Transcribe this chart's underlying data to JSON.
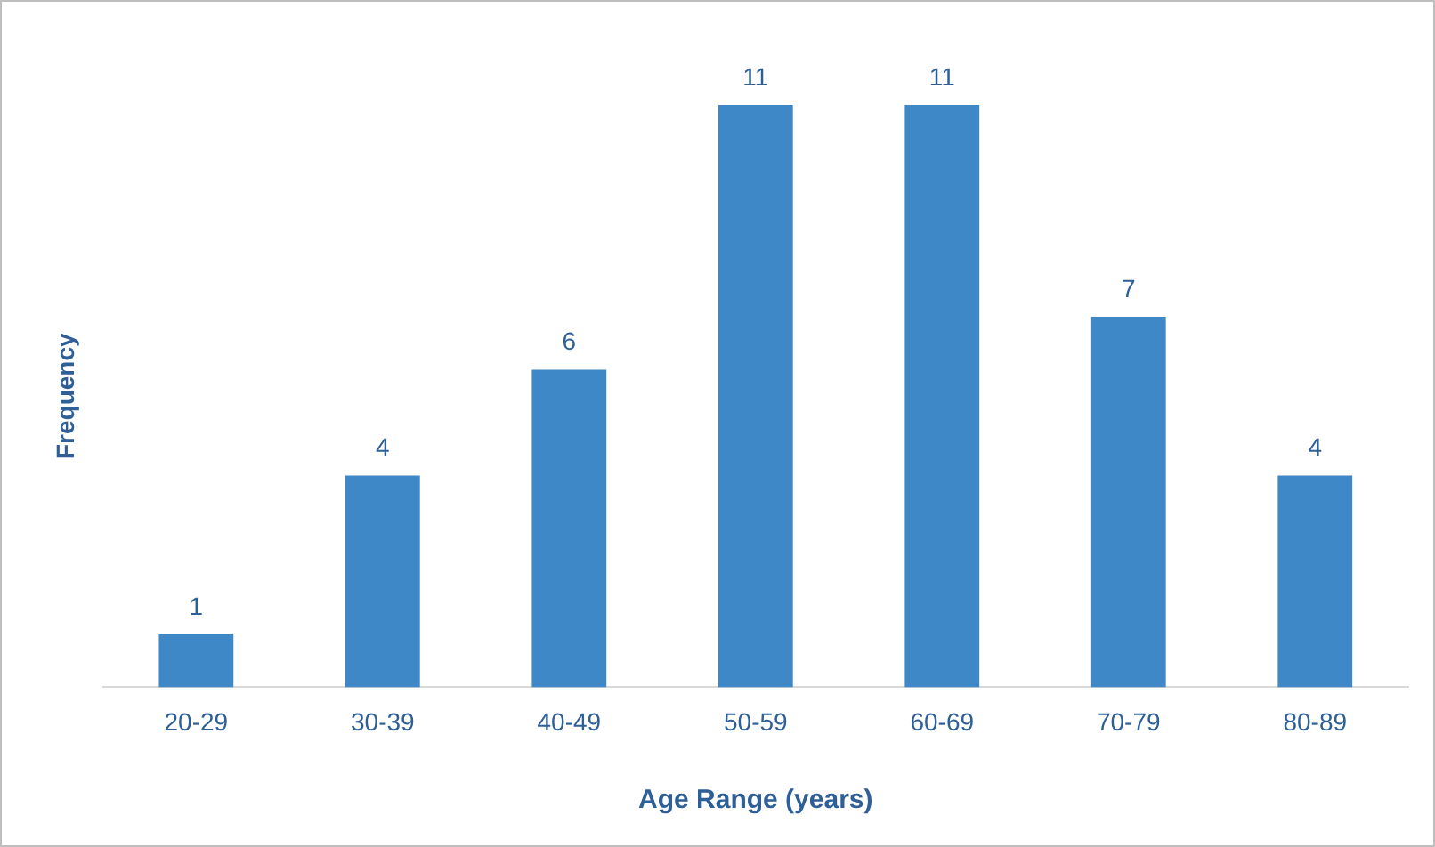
{
  "chart_data": {
    "type": "bar",
    "xlabel": "Age Range (years)",
    "ylabel": "Frequency",
    "categories": [
      "20-29",
      "30-39",
      "40-49",
      "50-59",
      "60-69",
      "70-79",
      "80-89"
    ],
    "values": [
      1,
      4,
      6,
      11,
      11,
      7,
      4
    ],
    "color": "#3f88c8",
    "data_labels": true,
    "grid": false,
    "legend": false
  }
}
